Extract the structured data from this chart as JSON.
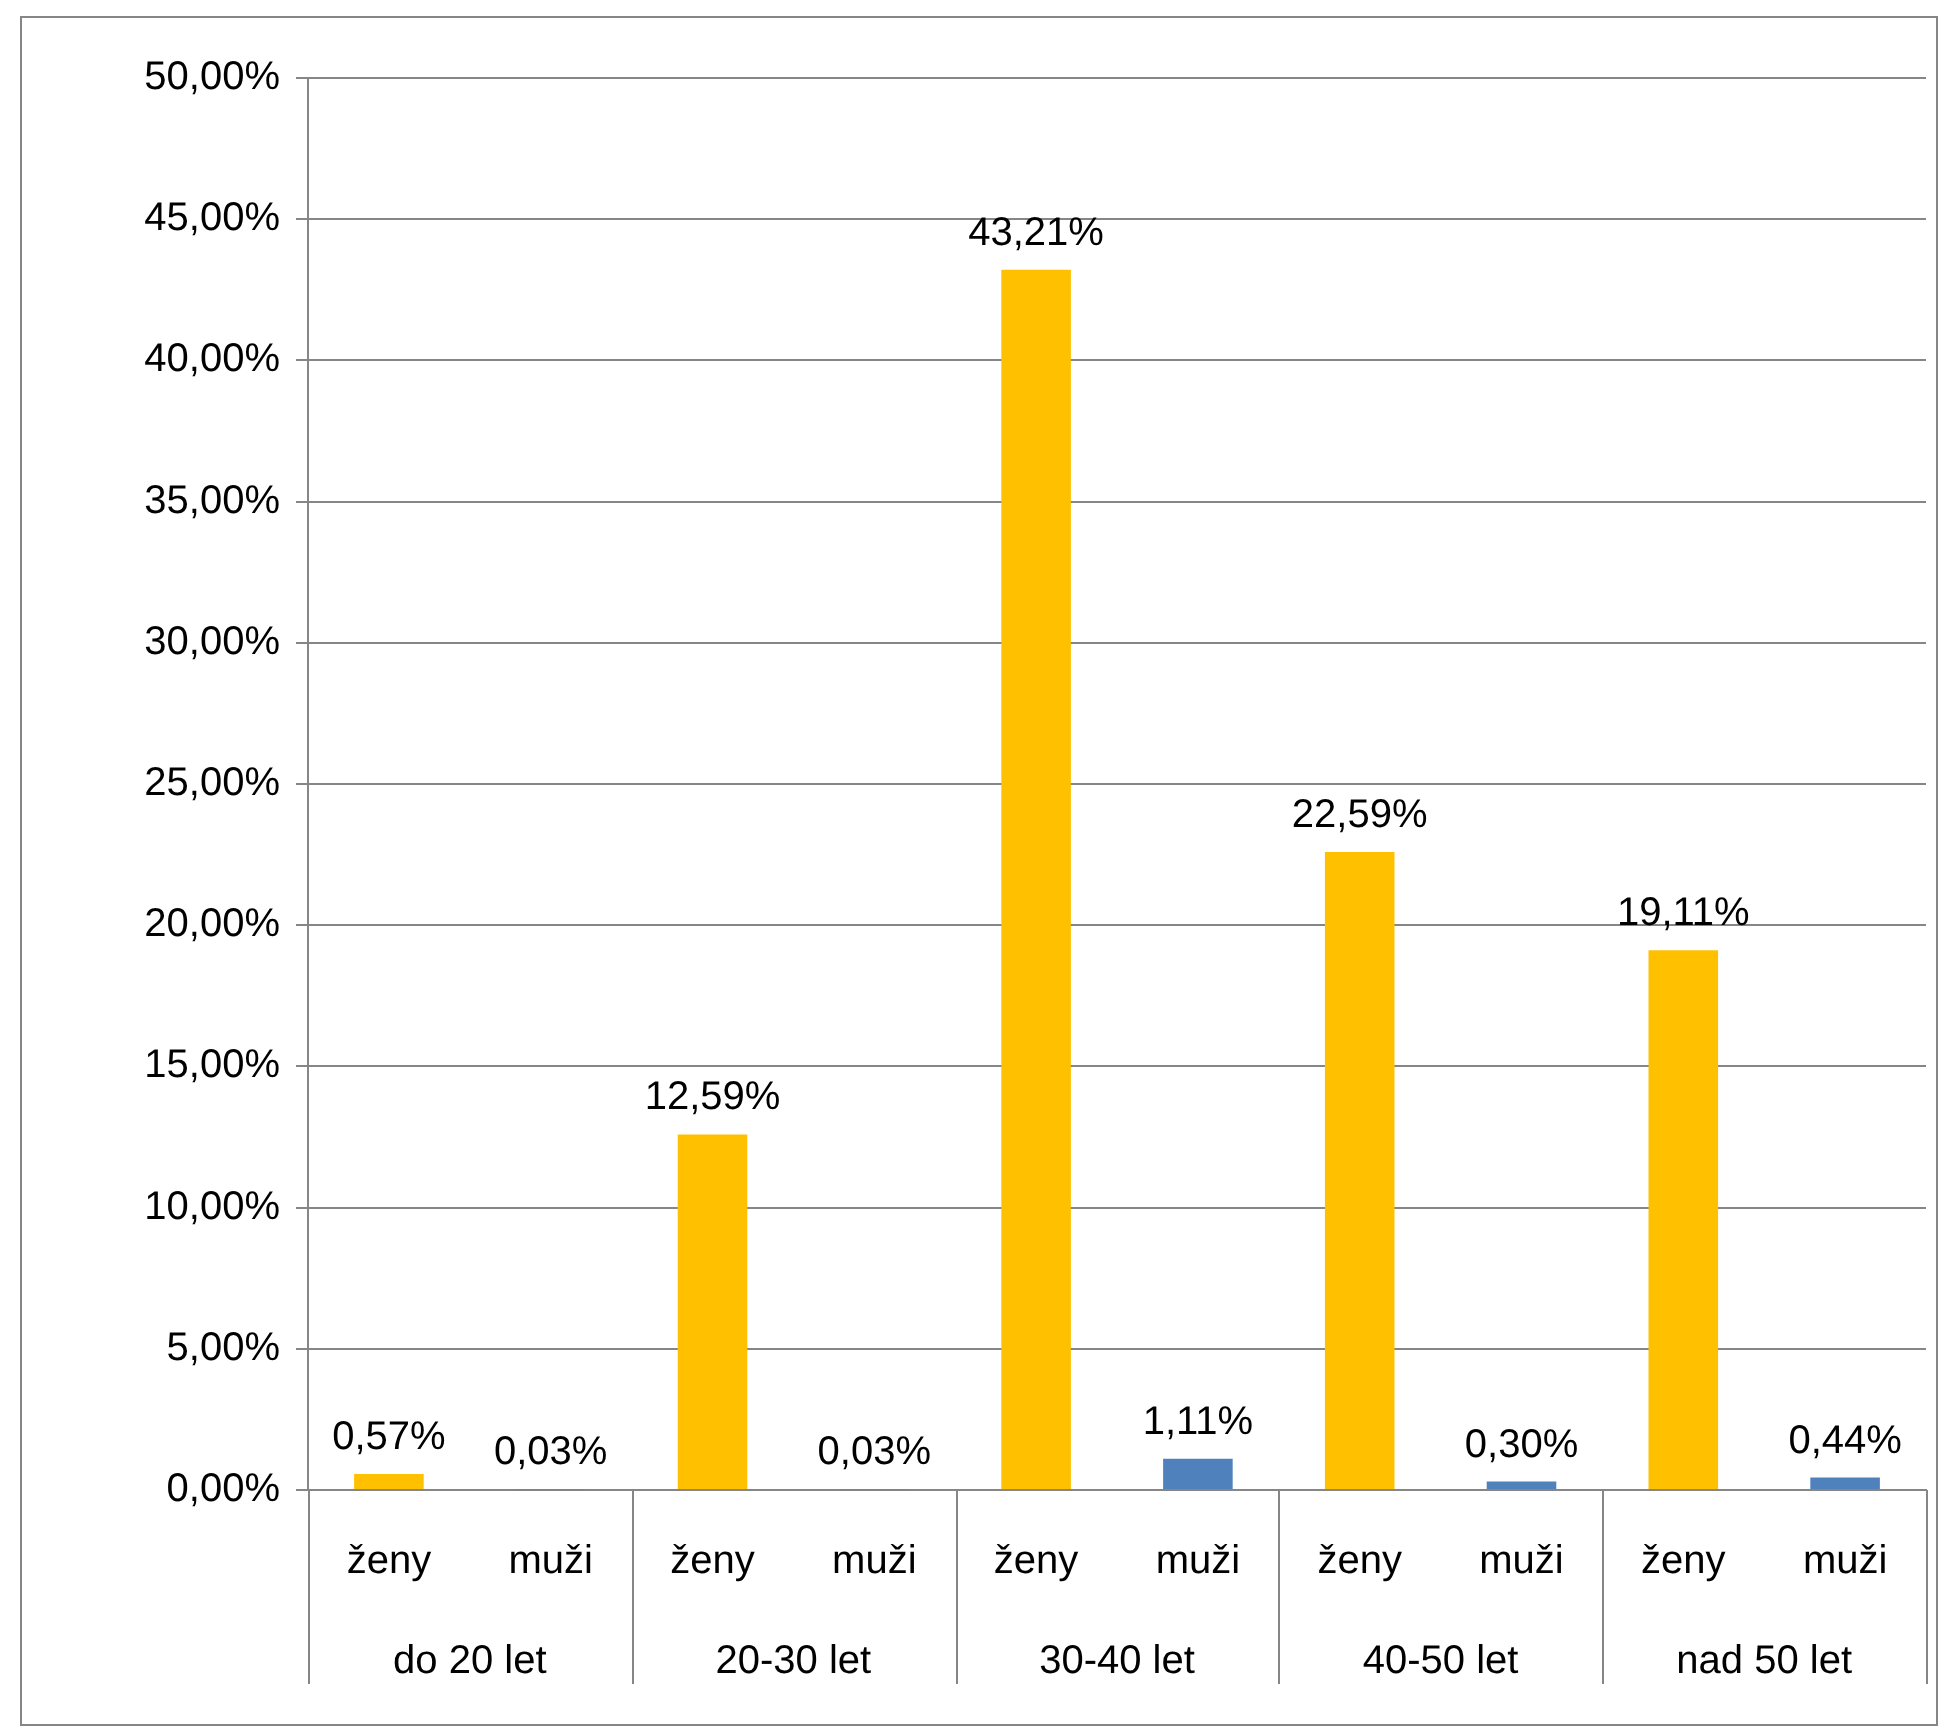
{
  "chart_data": {
    "type": "bar",
    "categories": [
      "do 20 let",
      "20-30 let",
      "30-40 let",
      "40-50 let",
      "nad 50 let"
    ],
    "series": [
      {
        "name": "ženy",
        "color": "#ffc000",
        "values": [
          0.57,
          12.59,
          43.21,
          22.59,
          19.11
        ],
        "value_labels": [
          "0,57%",
          "12,59%",
          "43,21%",
          "22,59%",
          "19,11%"
        ]
      },
      {
        "name": "muži",
        "color": "#4f81bd",
        "values": [
          0.03,
          0.03,
          1.11,
          0.3,
          0.44
        ],
        "value_labels": [
          "0,03%",
          "0,03%",
          "1,11%",
          "0,30%",
          "0,44%"
        ]
      }
    ],
    "ylim": [
      0,
      50
    ],
    "yticks": [
      {
        "value": 0,
        "label": "0,00%"
      },
      {
        "value": 5,
        "label": "5,00%"
      },
      {
        "value": 10,
        "label": "10,00%"
      },
      {
        "value": 15,
        "label": "15,00%"
      },
      {
        "value": 20,
        "label": "20,00%"
      },
      {
        "value": 25,
        "label": "25,00%"
      },
      {
        "value": 30,
        "label": "30,00%"
      },
      {
        "value": 35,
        "label": "35,00%"
      },
      {
        "value": 40,
        "label": "40,00%"
      },
      {
        "value": 45,
        "label": "45,00%"
      },
      {
        "value": 50,
        "label": "50,00%"
      }
    ],
    "grid": "y",
    "legend": false
  }
}
